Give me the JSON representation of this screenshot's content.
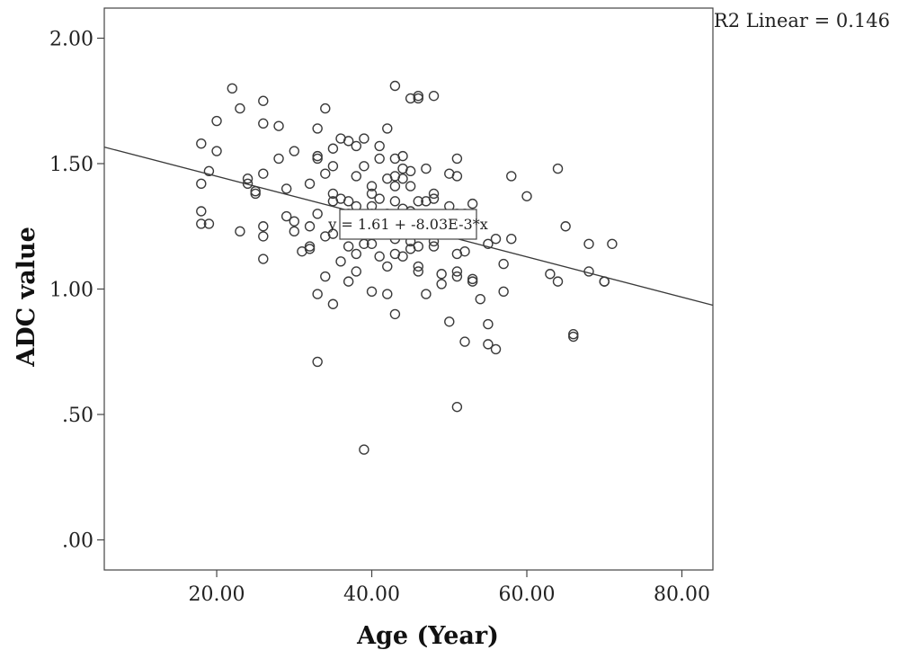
{
  "chart_data": {
    "type": "scatter",
    "xlabel": "Age (Year)",
    "ylabel": "ADC value",
    "xlim": [
      5.5,
      84
    ],
    "ylim": [
      -0.12,
      2.12
    ],
    "xticks": [
      20,
      40,
      60,
      80
    ],
    "xtick_labels": [
      "20.00",
      "40.00",
      "60.00",
      "80.00"
    ],
    "yticks": [
      0,
      0.5,
      1.0,
      1.5,
      2.0
    ],
    "ytick_labels": [
      ".00",
      ".50",
      "1.00",
      "1.50",
      "2.00"
    ],
    "grid": false,
    "r2_label": "R2 Linear = 0.146",
    "fit": {
      "intercept": 1.61,
      "slope": -0.00803,
      "equation_label": "y = 1.61 + -8.03E-3*x"
    },
    "points": [
      [
        18,
        1.58
      ],
      [
        18,
        1.42
      ],
      [
        18,
        1.31
      ],
      [
        18,
        1.26
      ],
      [
        19,
        1.47
      ],
      [
        19,
        1.26
      ],
      [
        20,
        1.67
      ],
      [
        20,
        1.55
      ],
      [
        22,
        1.8
      ],
      [
        23,
        1.72
      ],
      [
        23,
        1.23
      ],
      [
        24,
        1.44
      ],
      [
        24,
        1.42
      ],
      [
        25,
        1.39
      ],
      [
        25,
        1.38
      ],
      [
        26,
        1.75
      ],
      [
        26,
        1.66
      ],
      [
        26,
        1.46
      ],
      [
        26,
        1.25
      ],
      [
        26,
        1.21
      ],
      [
        26,
        1.12
      ],
      [
        28,
        1.65
      ],
      [
        28,
        1.52
      ],
      [
        29,
        1.4
      ],
      [
        29,
        1.29
      ],
      [
        30,
        1.55
      ],
      [
        30,
        1.27
      ],
      [
        30,
        1.23
      ],
      [
        31,
        1.15
      ],
      [
        32,
        1.42
      ],
      [
        32,
        1.25
      ],
      [
        32,
        1.17
      ],
      [
        32,
        1.16
      ],
      [
        33,
        1.64
      ],
      [
        33,
        1.53
      ],
      [
        33,
        1.52
      ],
      [
        33,
        1.3
      ],
      [
        33,
        0.98
      ],
      [
        33,
        0.71
      ],
      [
        34,
        1.72
      ],
      [
        34,
        1.46
      ],
      [
        34,
        1.21
      ],
      [
        34,
        1.05
      ],
      [
        35,
        1.56
      ],
      [
        35,
        1.49
      ],
      [
        35,
        1.38
      ],
      [
        35,
        1.35
      ],
      [
        35,
        1.22
      ],
      [
        35,
        0.94
      ],
      [
        36,
        1.6
      ],
      [
        36,
        1.36
      ],
      [
        36,
        1.11
      ],
      [
        37,
        1.59
      ],
      [
        37,
        1.35
      ],
      [
        37,
        1.3
      ],
      [
        37,
        1.17
      ],
      [
        37,
        1.03
      ],
      [
        38,
        1.57
      ],
      [
        38,
        1.45
      ],
      [
        38,
        1.33
      ],
      [
        38,
        1.24
      ],
      [
        38,
        1.14
      ],
      [
        38,
        1.07
      ],
      [
        39,
        1.6
      ],
      [
        39,
        1.49
      ],
      [
        39,
        1.27
      ],
      [
        39,
        1.18
      ],
      [
        39,
        0.36
      ],
      [
        40,
        1.41
      ],
      [
        40,
        1.38
      ],
      [
        40,
        1.33
      ],
      [
        40,
        1.3
      ],
      [
        40,
        1.18
      ],
      [
        40,
        0.99
      ],
      [
        41,
        1.57
      ],
      [
        41,
        1.52
      ],
      [
        41,
        1.36
      ],
      [
        41,
        1.25
      ],
      [
        41,
        1.13
      ],
      [
        42,
        1.64
      ],
      [
        42,
        1.44
      ],
      [
        42,
        1.3
      ],
      [
        42,
        1.09
      ],
      [
        42,
        0.98
      ],
      [
        43,
        1.81
      ],
      [
        43,
        1.52
      ],
      [
        43,
        1.45
      ],
      [
        43,
        1.41
      ],
      [
        43,
        1.35
      ],
      [
        43,
        1.2
      ],
      [
        43,
        1.14
      ],
      [
        43,
        0.9
      ],
      [
        44,
        1.53
      ],
      [
        44,
        1.48
      ],
      [
        44,
        1.44
      ],
      [
        44,
        1.32
      ],
      [
        44,
        1.13
      ],
      [
        45,
        1.76
      ],
      [
        45,
        1.47
      ],
      [
        45,
        1.41
      ],
      [
        45,
        1.31
      ],
      [
        45,
        1.19
      ],
      [
        45,
        1.16
      ],
      [
        46,
        1.77
      ],
      [
        46,
        1.76
      ],
      [
        46,
        1.35
      ],
      [
        46,
        1.17
      ],
      [
        46,
        1.09
      ],
      [
        46,
        1.07
      ],
      [
        47,
        1.48
      ],
      [
        47,
        1.35
      ],
      [
        47,
        1.28
      ],
      [
        47,
        0.98
      ],
      [
        48,
        1.77
      ],
      [
        48,
        1.38
      ],
      [
        48,
        1.36
      ],
      [
        48,
        1.19
      ],
      [
        48,
        1.17
      ],
      [
        49,
        1.23
      ],
      [
        49,
        1.06
      ],
      [
        49,
        1.02
      ],
      [
        50,
        1.46
      ],
      [
        50,
        1.33
      ],
      [
        50,
        0.87
      ],
      [
        51,
        1.52
      ],
      [
        51,
        1.45
      ],
      [
        51,
        1.3
      ],
      [
        51,
        1.14
      ],
      [
        51,
        1.07
      ],
      [
        51,
        1.05
      ],
      [
        51,
        0.53
      ],
      [
        52,
        1.3
      ],
      [
        52,
        1.15
      ],
      [
        52,
        0.79
      ],
      [
        53,
        1.34
      ],
      [
        53,
        1.04
      ],
      [
        53,
        1.03
      ],
      [
        54,
        0.96
      ],
      [
        55,
        1.18
      ],
      [
        55,
        0.86
      ],
      [
        55,
        0.78
      ],
      [
        56,
        1.2
      ],
      [
        56,
        0.76
      ],
      [
        57,
        1.1
      ],
      [
        57,
        0.99
      ],
      [
        58,
        1.45
      ],
      [
        58,
        1.2
      ],
      [
        60,
        1.37
      ],
      [
        63,
        1.06
      ],
      [
        64,
        1.48
      ],
      [
        64,
        1.03
      ],
      [
        65,
        1.25
      ],
      [
        66,
        0.82
      ],
      [
        66,
        0.81
      ],
      [
        68,
        1.18
      ],
      [
        68,
        1.07
      ],
      [
        70,
        1.03
      ],
      [
        70,
        1.03
      ],
      [
        71,
        1.18
      ]
    ]
  }
}
